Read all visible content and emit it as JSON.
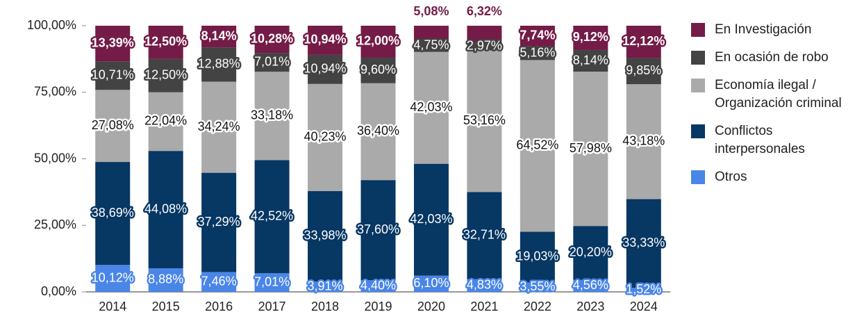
{
  "chart_data": {
    "type": "stacked_bar",
    "categories": [
      "2014",
      "2015",
      "2016",
      "2017",
      "2018",
      "2019",
      "2020",
      "2021",
      "2022",
      "2023",
      "2024"
    ],
    "series": [
      {
        "name": "En Investigación",
        "color": "#741b47",
        "values": [
          13.39,
          12.5,
          8.14,
          10.28,
          10.94,
          12.0,
          5.08,
          6.32,
          7.74,
          9.12,
          12.12
        ],
        "value_labels": [
          "13,39%",
          "12,50%",
          "8,14%",
          "10,28%",
          "10,94%",
          "12,00%",
          "5,08%",
          "6,32%",
          "7,74%",
          "9,12%",
          "12,12%"
        ]
      },
      {
        "name": "En ocasión de robo",
        "color": "#434343",
        "values": [
          10.71,
          12.5,
          12.88,
          7.01,
          10.94,
          9.6,
          4.75,
          2.97,
          5.16,
          8.14,
          9.85
        ],
        "value_labels": [
          "10,71%",
          "12,50%",
          "12,88%",
          "7,01%",
          "10,94%",
          "9,60%",
          "4,75%",
          "2,97%",
          "5,16%",
          "8,14%",
          "9,85%"
        ]
      },
      {
        "name": "Economía ilegal / Organización criminal",
        "color": "#aaaaaa",
        "values": [
          27.08,
          22.04,
          34.24,
          33.18,
          40.23,
          36.4,
          42.03,
          53.16,
          64.52,
          57.98,
          43.18
        ],
        "value_labels": [
          "27,08%",
          "22,04%",
          "34,24%",
          "33,18%",
          "40,23%",
          "36,40%",
          "42,03%",
          "53,16%",
          "64,52%",
          "57,98%",
          "43,18%"
        ]
      },
      {
        "name": "Conflictos interpersonales",
        "color": "#073763",
        "values": [
          38.69,
          44.08,
          37.29,
          42.52,
          33.98,
          37.6,
          42.03,
          32.71,
          19.03,
          20.2,
          33.33
        ],
        "value_labels": [
          "38,69%",
          "44,08%",
          "37,29%",
          "42,52%",
          "33,98%",
          "37,60%",
          "42,03%",
          "32,71%",
          "19,03%",
          "20,20%",
          "33,33%"
        ]
      },
      {
        "name": "Otros",
        "color": "#4a86e8",
        "values": [
          10.12,
          8.88,
          7.46,
          7.01,
          3.91,
          4.4,
          6.1,
          4.83,
          3.55,
          4.56,
          1.52
        ],
        "value_labels": [
          "10,12%",
          "8,88%",
          "7,46%",
          "7,01%",
          "3,91%",
          "4,40%",
          "6,10%",
          "4,83%",
          "3,55%",
          "4,56%",
          "1,52%"
        ]
      }
    ],
    "ylim": [
      0,
      100
    ],
    "yticks": [
      {
        "value": 0,
        "label": "0,00%"
      },
      {
        "value": 25,
        "label": "25,00%"
      },
      {
        "value": 50,
        "label": "50,00%"
      },
      {
        "value": 75,
        "label": "75,00%"
      },
      {
        "value": 100,
        "label": "100,00%"
      }
    ],
    "legend": "right"
  }
}
